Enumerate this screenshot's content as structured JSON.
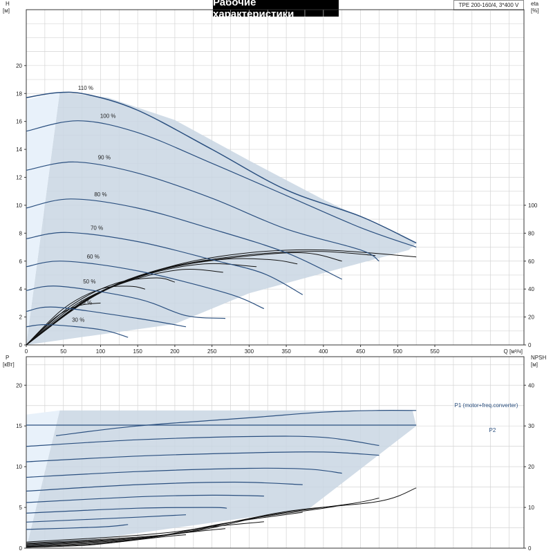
{
  "header": {
    "title": "Рабочие характеристики",
    "model": "TPE 200-160/4, 3*400 V"
  },
  "colors": {
    "curve": "#2a4f7f",
    "efficiency": "#111111",
    "area_fill": "#c9d6e3",
    "area_light": "#e8f1fa",
    "grid": "#d4d4d4",
    "axis": "#333333"
  },
  "chart_data": [
    {
      "type": "line",
      "name": "head",
      "xlabel": "Q [м³/ч]",
      "ylabel_left": "H",
      "ylabel_left_unit": "[м]",
      "ylabel_right": "eta",
      "ylabel_right_unit": "[%]",
      "xlim": [
        0,
        670
      ],
      "ylim": [
        0,
        24
      ],
      "y2lim": [
        0,
        240
      ],
      "x_ticks": [
        0,
        50,
        100,
        150,
        200,
        250,
        300,
        350,
        400,
        450,
        500,
        550
      ],
      "y_ticks": [
        0,
        2,
        4,
        6,
        8,
        10,
        12,
        14,
        16,
        18,
        20
      ],
      "y2_ticks": [
        0,
        20,
        40,
        60,
        80,
        100
      ],
      "grid": true,
      "operating_range": [
        [
          45,
          18.1
        ],
        [
          110,
          17.7
        ],
        [
          200,
          16.1
        ],
        [
          300,
          13.2
        ],
        [
          400,
          10.4
        ],
        [
          525,
          7.3
        ],
        [
          515,
          6.8
        ],
        [
          300,
          3.7
        ],
        [
          200,
          1.5
        ],
        [
          0,
          0
        ]
      ],
      "speed_curves": [
        {
          "label": "110 %",
          "points": [
            [
              0,
              17.7
            ],
            [
              40,
              18.05
            ],
            [
              80,
              17.95
            ],
            [
              150,
              16.8
            ],
            [
              250,
              14.0
            ],
            [
              350,
              11.1
            ],
            [
              450,
              9.2
            ],
            [
              525,
              7.3
            ]
          ]
        },
        {
          "label": "100 %",
          "points": [
            [
              0,
              15.3
            ],
            [
              70,
              16.05
            ],
            [
              150,
              15.2
            ],
            [
              250,
              13.0
            ],
            [
              350,
              10.7
            ],
            [
              450,
              8.4
            ],
            [
              525,
              7.0
            ]
          ]
        },
        {
          "label": "90 %",
          "points": [
            [
              0,
              12.5
            ],
            [
              65,
              13.1
            ],
            [
              150,
              12.3
            ],
            [
              250,
              10.5
            ],
            [
              350,
              8.3
            ],
            [
              450,
              6.8
            ],
            [
              475,
              6.0
            ]
          ]
        },
        {
          "label": "80 %",
          "points": [
            [
              0,
              9.8
            ],
            [
              60,
              10.45
            ],
            [
              150,
              9.8
            ],
            [
              250,
              8.3
            ],
            [
              350,
              6.6
            ],
            [
              425,
              4.7
            ]
          ]
        },
        {
          "label": "70 %",
          "points": [
            [
              0,
              7.6
            ],
            [
              55,
              8.05
            ],
            [
              150,
              7.4
            ],
            [
              250,
              6.1
            ],
            [
              320,
              5.1
            ],
            [
              372,
              3.6
            ]
          ]
        },
        {
          "label": "60 %",
          "points": [
            [
              0,
              5.6
            ],
            [
              50,
              6.0
            ],
            [
              150,
              5.3
            ],
            [
              270,
              3.7
            ],
            [
              320,
              2.6
            ]
          ]
        },
        {
          "label": "50 %",
          "points": [
            [
              0,
              3.9
            ],
            [
              45,
              4.2
            ],
            [
              150,
              3.3
            ],
            [
              215,
              2.1
            ],
            [
              268,
              1.9
            ]
          ]
        },
        {
          "label": "40 %",
          "points": [
            [
              0,
              2.4
            ],
            [
              40,
              2.7
            ],
            [
              150,
              1.9
            ],
            [
              215,
              1.3
            ]
          ]
        },
        {
          "label": "30 %",
          "points": [
            [
              0,
              1.3
            ],
            [
              30,
              1.45
            ],
            [
              100,
              1.1
            ],
            [
              137,
              0.55
            ]
          ]
        }
      ],
      "efficiency_curves": [
        {
          "points": [
            [
              0,
              0
            ],
            [
              100,
              38
            ],
            [
              200,
              57
            ],
            [
              300,
              66
            ],
            [
              400,
              68
            ],
            [
              525,
              63
            ]
          ]
        },
        {
          "points": [
            [
              0,
              0
            ],
            [
              95,
              36
            ],
            [
              190,
              55
            ],
            [
              290,
              64
            ],
            [
              390,
              67
            ],
            [
              470,
              64
            ]
          ]
        },
        {
          "points": [
            [
              0,
              0
            ],
            [
              90,
              35
            ],
            [
              180,
              54
            ],
            [
              270,
              62
            ],
            [
              370,
              66
            ],
            [
              425,
              60
            ]
          ]
        },
        {
          "points": [
            [
              0,
              0
            ],
            [
              85,
              34
            ],
            [
              170,
              52
            ],
            [
              260,
              61
            ],
            [
              330,
              61
            ],
            [
              365,
              58
            ]
          ]
        },
        {
          "points": [
            [
              0,
              0
            ],
            [
              80,
              32
            ],
            [
              160,
              50
            ],
            [
              240,
              58
            ],
            [
              310,
              56
            ]
          ]
        },
        {
          "points": [
            [
              0,
              0
            ],
            [
              70,
              30
            ],
            [
              140,
              46
            ],
            [
              210,
              54
            ],
            [
              265,
              52
            ]
          ]
        },
        {
          "points": [
            [
              0,
              0
            ],
            [
              60,
              28
            ],
            [
              120,
              44
            ],
            [
              175,
              48
            ],
            [
              200,
              45
            ]
          ]
        },
        {
          "points": [
            [
              0,
              0
            ],
            [
              50,
              26
            ],
            [
              100,
              40
            ],
            [
              140,
              42
            ],
            [
              160,
              40
            ]
          ]
        },
        {
          "points": [
            [
              0,
              0
            ],
            [
              40,
              20
            ],
            [
              70,
              28
            ],
            [
              100,
              30
            ]
          ]
        }
      ]
    },
    {
      "type": "line",
      "name": "power",
      "xlabel": "",
      "ylabel_left": "P",
      "ylabel_left_unit": "[кВт]",
      "ylabel_right": "NPSH",
      "ylabel_right_unit": "[м]",
      "xlim": [
        0,
        670
      ],
      "ylim": [
        0,
        23.5
      ],
      "y2lim": [
        0,
        47
      ],
      "y_ticks": [
        0,
        5,
        10,
        15,
        20
      ],
      "y2_ticks": [
        0,
        10,
        20,
        30,
        40
      ],
      "grid": true,
      "operating_range": [
        [
          45,
          16.9
        ],
        [
          520,
          16.9
        ],
        [
          525,
          15.0
        ],
        [
          380,
          4.8
        ],
        [
          100,
          1.2
        ],
        [
          0,
          0
        ]
      ],
      "power_curves": [
        {
          "label": "P1 (motor+freq.converter)",
          "points": [
            [
              40,
              13.8
            ],
            [
              150,
              15.0
            ],
            [
              300,
              16.0
            ],
            [
              400,
              16.7
            ],
            [
              470,
              16.9
            ],
            [
              525,
              16.9
            ]
          ]
        },
        {
          "label": "P2",
          "points": [
            [
              0,
              15.1
            ],
            [
              200,
              15.1
            ],
            [
              400,
              15.1
            ],
            [
              525,
              15.1
            ]
          ]
        },
        {
          "label": "",
          "points": [
            [
              0,
              12.5
            ],
            [
              150,
              13.3
            ],
            [
              300,
              13.7
            ],
            [
              400,
              13.6
            ],
            [
              475,
              12.6
            ]
          ]
        },
        {
          "label": "",
          "points": [
            [
              0,
              10.6
            ],
            [
              150,
              11.3
            ],
            [
              300,
              11.7
            ],
            [
              400,
              11.8
            ],
            [
              475,
              11.4
            ]
          ]
        },
        {
          "label": "",
          "points": [
            [
              0,
              8.7
            ],
            [
              150,
              9.4
            ],
            [
              300,
              9.8
            ],
            [
              380,
              9.7
            ],
            [
              425,
              9.2
            ]
          ]
        },
        {
          "label": "",
          "points": [
            [
              0,
              7.0
            ],
            [
              150,
              7.8
            ],
            [
              280,
              8.1
            ],
            [
              372,
              7.8
            ]
          ]
        },
        {
          "label": "",
          "points": [
            [
              0,
              5.6
            ],
            [
              150,
              6.3
            ],
            [
              250,
              6.5
            ],
            [
              320,
              6.4
            ]
          ]
        },
        {
          "label": "",
          "points": [
            [
              0,
              4.3
            ],
            [
              150,
              4.9
            ],
            [
              250,
              5.0
            ],
            [
              270,
              4.9
            ]
          ]
        },
        {
          "label": "",
          "points": [
            [
              0,
              3.2
            ],
            [
              150,
              3.8
            ],
            [
              215,
              4.1
            ]
          ]
        },
        {
          "label": "",
          "points": [
            [
              0,
              2.3
            ],
            [
              100,
              2.6
            ],
            [
              137,
              2.9
            ]
          ]
        }
      ],
      "npsh_curves": [
        {
          "points": [
            [
              0,
              1.5
            ],
            [
              200,
              4.0
            ],
            [
              350,
              9.0
            ],
            [
              475,
              11.5
            ],
            [
              525,
              14.8
            ]
          ]
        },
        {
          "points": [
            [
              0,
              1.2
            ],
            [
              200,
              3.5
            ],
            [
              330,
              8.2
            ],
            [
              440,
              11.0
            ],
            [
              475,
              12.3
            ]
          ]
        },
        {
          "points": [
            [
              0,
              1.0
            ],
            [
              180,
              3.0
            ],
            [
              300,
              7.2
            ],
            [
              400,
              9.8
            ],
            [
              425,
              10.6
            ]
          ]
        },
        {
          "points": [
            [
              0,
              0.8
            ],
            [
              160,
              2.6
            ],
            [
              270,
              6.2
            ],
            [
              372,
              8.8
            ]
          ]
        },
        {
          "points": [
            [
              0,
              0.6
            ],
            [
              150,
              2.2
            ],
            [
              240,
              5.0
            ],
            [
              320,
              6.5
            ]
          ]
        },
        {
          "points": [
            [
              0,
              0.4
            ],
            [
              120,
              1.6
            ],
            [
              215,
              3.8
            ],
            [
              268,
              4.8
            ]
          ]
        },
        {
          "points": [
            [
              0,
              0.3
            ],
            [
              100,
              1.1
            ],
            [
              180,
              2.7
            ],
            [
              215,
              3.3
            ]
          ]
        },
        {
          "points": [
            [
              0,
              0.2
            ],
            [
              80,
              0.7
            ],
            [
              137,
              1.8
            ]
          ]
        }
      ]
    }
  ]
}
